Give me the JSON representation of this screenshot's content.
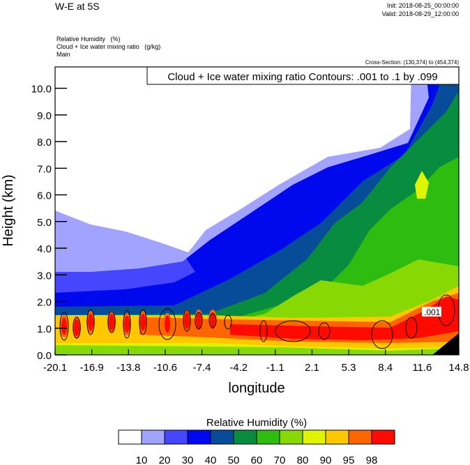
{
  "header": {
    "title": "W-E at 5S",
    "init": "Init: 2018-08-25_00:00:00",
    "valid": "Valid: 2018-08-29_12:00:00",
    "fields": [
      "Relative Humidity   (%)",
      "Cloud + Ice water mixing ratio   (g/kg)",
      "Main"
    ],
    "cross_section": "Cross-Section: (130,374) to (454,374)"
  },
  "chart_data": {
    "type": "heatmap",
    "subtype": "filled-contour cross-section",
    "title": "W-E at 5S",
    "xlabel": "longitude",
    "ylabel": "Height (km)",
    "xlim": [
      -20.1,
      14.8
    ],
    "ylim": [
      0,
      10.8
    ],
    "x_ticks": [
      "-20.1",
      "-16.9",
      "-13.8",
      "-10.6",
      "-7.4",
      "-4.2",
      "-1.1",
      "2.1",
      "5.3",
      "8.4",
      "11.6",
      "14.8"
    ],
    "y_ticks": [
      "0.0",
      "1.0",
      "2.0",
      "3.0",
      "4.0",
      "5.0",
      "6.0",
      "7.0",
      "8.0",
      "9.0",
      "10.0"
    ],
    "y_tick_values": [
      0,
      1,
      2,
      3,
      4,
      5,
      6,
      7,
      8,
      9,
      10
    ],
    "contour_legend": "Cloud + Ice water mixing ratio Contours: .001 to .1 by .099",
    "contour_label": ".001",
    "colorbar": {
      "title": "Relative Humidity  (%)",
      "labels": [
        "10",
        "20",
        "30",
        "40",
        "50",
        "60",
        "70",
        "80",
        "90",
        "95",
        "98"
      ],
      "colors": [
        "#ffffff",
        "#a2a2ff",
        "#4646ff",
        "#0008ee",
        "#064c98",
        "#078c40",
        "#2ebc10",
        "#88d806",
        "#def400",
        "#ffc800",
        "#ff6600",
        "#ff0a00"
      ]
    }
  }
}
